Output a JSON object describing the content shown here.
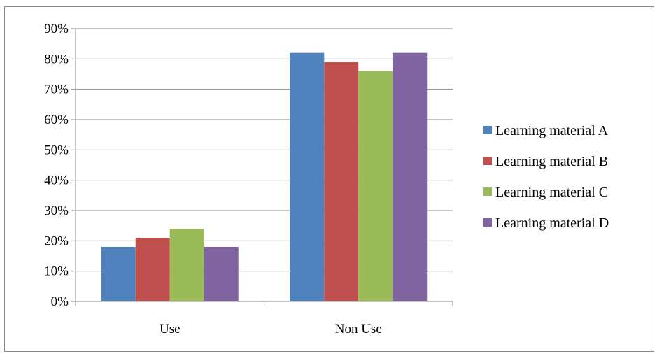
{
  "chart_data": {
    "type": "bar",
    "categories": [
      "Use",
      "Non Use"
    ],
    "series": [
      {
        "name": "Learning material A",
        "values": [
          18,
          82
        ],
        "color": "#4f81bd"
      },
      {
        "name": "Learning material B",
        "values": [
          21,
          79
        ],
        "color": "#c0504d"
      },
      {
        "name": "Learning material C",
        "values": [
          24,
          76
        ],
        "color": "#9bbb59"
      },
      {
        "name": "Learning material D",
        "values": [
          18,
          82
        ],
        "color": "#8064a2"
      }
    ],
    "y_ticks": [
      "0%",
      "10%",
      "20%",
      "30%",
      "40%",
      "50%",
      "60%",
      "70%",
      "80%",
      "90%"
    ],
    "ylim": [
      0,
      90
    ],
    "grid": true,
    "legend_position": "right",
    "title": "",
    "xlabel": "",
    "ylabel": ""
  }
}
